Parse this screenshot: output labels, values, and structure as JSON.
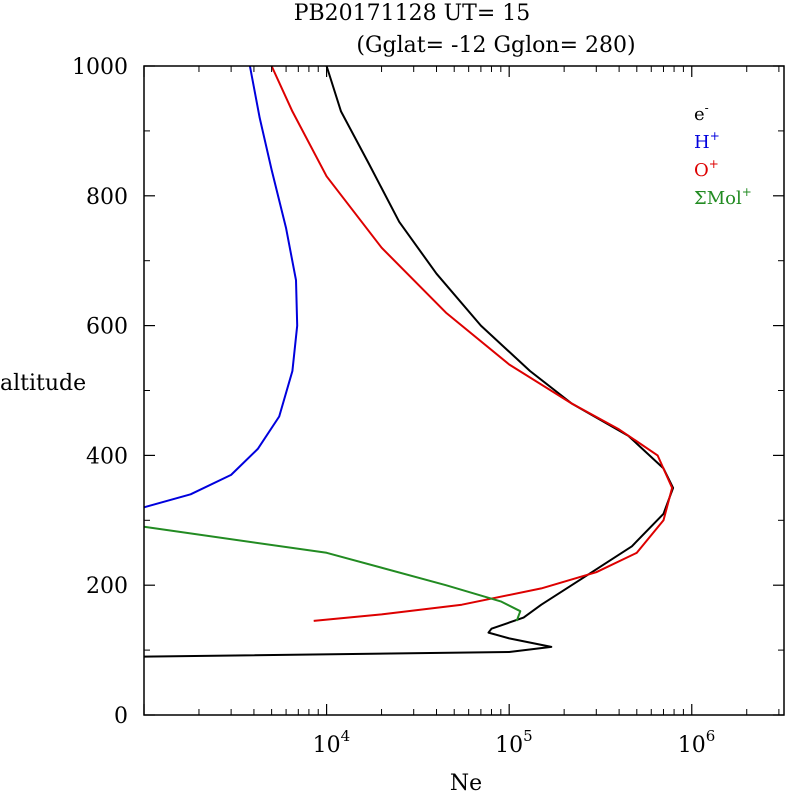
{
  "chart_data": {
    "type": "line",
    "title": "PB20171128   UT=  15",
    "subtitle": "(Gglat= -12   Gglon=  280)",
    "xlabel": "Ne",
    "ylabel": "altitude",
    "xscale": "log",
    "xlim": [
      1000,
      3200000
    ],
    "ylim": [
      0,
      1000
    ],
    "x_ticks": [
      {
        "value": 10000,
        "base": "10",
        "exp": "4"
      },
      {
        "value": 100000,
        "base": "10",
        "exp": "5"
      },
      {
        "value": 1000000,
        "base": "10",
        "exp": "6"
      }
    ],
    "y_ticks": [
      {
        "value": 0,
        "label": "0"
      },
      {
        "value": 200,
        "label": "200"
      },
      {
        "value": 400,
        "label": "400"
      },
      {
        "value": 600,
        "label": "600"
      },
      {
        "value": 800,
        "label": "800"
      },
      {
        "value": 1000,
        "label": "1000"
      }
    ],
    "grid": false,
    "legend_position": "top-right",
    "series": [
      {
        "name": "e-",
        "base": "e",
        "sup": "-",
        "color": "#000000",
        "points": [
          [
            1000,
            90
          ],
          [
            100000,
            97
          ],
          [
            170000,
            105
          ],
          [
            100000,
            118
          ],
          [
            77000,
            127
          ],
          [
            80000,
            133
          ],
          [
            120000,
            150
          ],
          [
            150000,
            170
          ],
          [
            250000,
            210
          ],
          [
            470000,
            260
          ],
          [
            700000,
            310
          ],
          [
            790000,
            350
          ],
          [
            700000,
            380
          ],
          [
            450000,
            430
          ],
          [
            220000,
            480
          ],
          [
            130000,
            530
          ],
          [
            70000,
            600
          ],
          [
            40000,
            680
          ],
          [
            25000,
            760
          ],
          [
            17000,
            850
          ],
          [
            12000,
            930
          ],
          [
            10000,
            1000
          ]
        ]
      },
      {
        "name": "H+",
        "base": "H",
        "sup": "+",
        "color": "#0000dd",
        "points": [
          [
            1000,
            320
          ],
          [
            1800,
            340
          ],
          [
            3000,
            370
          ],
          [
            4200,
            410
          ],
          [
            5500,
            460
          ],
          [
            6500,
            530
          ],
          [
            6900,
            600
          ],
          [
            6800,
            670
          ],
          [
            6000,
            750
          ],
          [
            5000,
            840
          ],
          [
            4300,
            920
          ],
          [
            3800,
            1000
          ]
        ]
      },
      {
        "name": "O+",
        "base": "O",
        "sup": "+",
        "color": "#dd0000",
        "points": [
          [
            8500,
            145
          ],
          [
            20000,
            155
          ],
          [
            55000,
            170
          ],
          [
            150000,
            195
          ],
          [
            300000,
            220
          ],
          [
            500000,
            250
          ],
          [
            700000,
            300
          ],
          [
            780000,
            350
          ],
          [
            650000,
            400
          ],
          [
            400000,
            440
          ],
          [
            220000,
            480
          ],
          [
            100000,
            540
          ],
          [
            45000,
            620
          ],
          [
            20000,
            720
          ],
          [
            10000,
            830
          ],
          [
            6500,
            930
          ],
          [
            5000,
            1000
          ]
        ]
      },
      {
        "name": "ΣMol+",
        "base": "ΣMol",
        "sup": "+",
        "color": "#228b22",
        "points": [
          [
            1000,
            290
          ],
          [
            10000,
            250
          ],
          [
            45000,
            200
          ],
          [
            90000,
            175
          ],
          [
            115000,
            160
          ],
          [
            110000,
            145
          ]
        ]
      }
    ]
  }
}
